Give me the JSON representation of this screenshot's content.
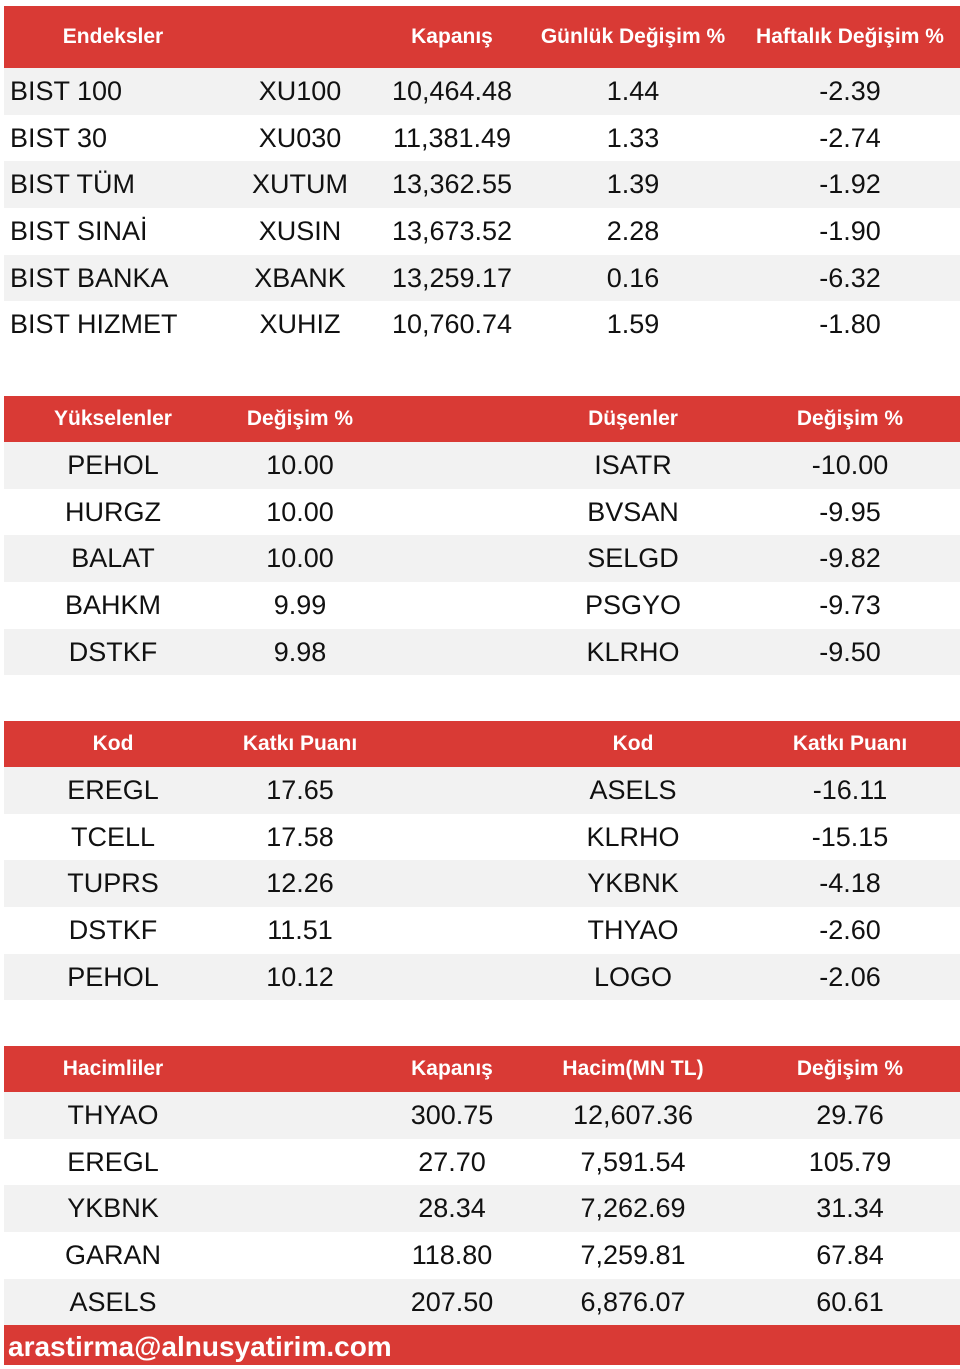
{
  "indices": {
    "headers": [
      "Endeksler",
      "",
      "Kapanış",
      "Günlük Değişim %",
      "Haftalık Değişim %"
    ],
    "rows": [
      [
        "BIST 100",
        "XU100",
        "10,464.48",
        "1.44",
        "-2.39"
      ],
      [
        "BIST 30",
        "XU030",
        "11,381.49",
        "1.33",
        "-2.74"
      ],
      [
        "BIST TÜM",
        "XUTUM",
        "13,362.55",
        "1.39",
        "-1.92"
      ],
      [
        "BIST SINAİ",
        "XUSIN",
        "13,673.52",
        "2.28",
        "-1.90"
      ],
      [
        "BIST BANKA",
        "XBANK",
        "13,259.17",
        "0.16",
        "-6.32"
      ],
      [
        "BIST HIZMET",
        "XUHIZ",
        "10,760.74",
        "1.59",
        "-1.80"
      ]
    ]
  },
  "movers": {
    "headers": [
      "Yükselenler",
      "Değişim %",
      "",
      "Düşenler",
      "Değişim %"
    ],
    "rows": [
      [
        "PEHOL",
        "10.00",
        "",
        "ISATR",
        "-10.00"
      ],
      [
        "HURGZ",
        "10.00",
        "",
        "BVSAN",
        "-9.95"
      ],
      [
        "BALAT",
        "10.00",
        "",
        "SELGD",
        "-9.82"
      ],
      [
        "BAHKM",
        "9.99",
        "",
        "PSGYO",
        "-9.73"
      ],
      [
        "DSTKF",
        "9.98",
        "",
        "KLRHO",
        "-9.50"
      ]
    ]
  },
  "contribution": {
    "headers": [
      "Kod",
      "Katkı Puanı",
      "",
      "Kod",
      "Katkı Puanı"
    ],
    "rows": [
      [
        "EREGL",
        "17.65",
        "",
        "ASELS",
        "-16.11"
      ],
      [
        "TCELL",
        "17.58",
        "",
        "KLRHO",
        "-15.15"
      ],
      [
        "TUPRS",
        "12.26",
        "",
        "YKBNK",
        "-4.18"
      ],
      [
        "DSTKF",
        "11.51",
        "",
        "THYAO",
        "-2.60"
      ],
      [
        "PEHOL",
        "10.12",
        "",
        "LOGO",
        "-2.06"
      ]
    ]
  },
  "volume": {
    "headers": [
      "Hacimliler",
      "",
      "Kapanış",
      "Hacim(MN TL)",
      "Değişim %"
    ],
    "rows": [
      [
        "THYAO",
        "",
        "300.75",
        "12,607.36",
        "29.76"
      ],
      [
        "EREGL",
        "",
        "27.70",
        "7,591.54",
        "105.79"
      ],
      [
        "YKBNK",
        "",
        "28.34",
        "7,262.69",
        "31.34"
      ],
      [
        "GARAN",
        "",
        "118.80",
        "7,259.81",
        "67.84"
      ],
      [
        "ASELS",
        "",
        "207.50",
        "6,876.07",
        "60.61"
      ]
    ]
  },
  "footer": {
    "email": "arastirma@alnusyatirim.com"
  },
  "colors": {
    "header": "#d93a35",
    "stripe": "#f2f2f2"
  }
}
